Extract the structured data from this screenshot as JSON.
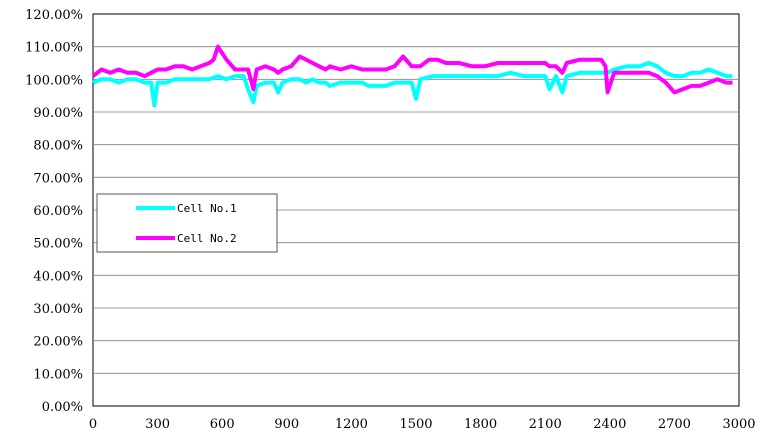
{
  "chart_data": {
    "type": "line",
    "title": "",
    "xlabel": "",
    "ylabel": "",
    "xlim": [
      0,
      3000
    ],
    "ylim": [
      0,
      120
    ],
    "x_ticks": [
      "0",
      "300",
      "600",
      "900",
      "1200",
      "1500",
      "1800",
      "2100",
      "2400",
      "2700",
      "3000"
    ],
    "y_ticks": [
      "0.00%",
      "10.00%",
      "20.00%",
      "30.00%",
      "40.00%",
      "50.00%",
      "60.00%",
      "70.00%",
      "80.00%",
      "90.00%",
      "100.00%",
      "110.00%",
      "120.00%"
    ],
    "grid": "horizontal",
    "legend_position": "middle-left",
    "series": [
      {
        "name": "Cell No.1",
        "color": "#00FFFF",
        "points": [
          [
            0,
            99
          ],
          [
            40,
            100
          ],
          [
            80,
            100
          ],
          [
            120,
            99
          ],
          [
            160,
            100
          ],
          [
            200,
            100
          ],
          [
            240,
            99
          ],
          [
            270,
            99
          ],
          [
            285,
            92
          ],
          [
            300,
            99
          ],
          [
            340,
            99
          ],
          [
            380,
            100
          ],
          [
            420,
            100
          ],
          [
            460,
            100
          ],
          [
            500,
            100
          ],
          [
            540,
            100
          ],
          [
            580,
            101
          ],
          [
            620,
            100
          ],
          [
            660,
            101
          ],
          [
            700,
            101
          ],
          [
            720,
            97
          ],
          [
            745,
            93
          ],
          [
            760,
            98
          ],
          [
            800,
            99
          ],
          [
            840,
            99
          ],
          [
            860,
            96
          ],
          [
            880,
            99
          ],
          [
            920,
            100
          ],
          [
            960,
            100
          ],
          [
            990,
            99
          ],
          [
            1020,
            100
          ],
          [
            1050,
            99
          ],
          [
            1080,
            99
          ],
          [
            1100,
            98
          ],
          [
            1150,
            99
          ],
          [
            1200,
            99
          ],
          [
            1250,
            99
          ],
          [
            1280,
            98
          ],
          [
            1320,
            98
          ],
          [
            1360,
            98
          ],
          [
            1400,
            99
          ],
          [
            1440,
            99
          ],
          [
            1480,
            99
          ],
          [
            1500,
            94
          ],
          [
            1520,
            100
          ],
          [
            1580,
            101
          ],
          [
            1640,
            101
          ],
          [
            1700,
            101
          ],
          [
            1760,
            101
          ],
          [
            1820,
            101
          ],
          [
            1880,
            101
          ],
          [
            1940,
            102
          ],
          [
            2000,
            101
          ],
          [
            2060,
            101
          ],
          [
            2100,
            101
          ],
          [
            2120,
            97
          ],
          [
            2150,
            101
          ],
          [
            2180,
            96
          ],
          [
            2200,
            101
          ],
          [
            2260,
            102
          ],
          [
            2320,
            102
          ],
          [
            2360,
            102
          ],
          [
            2390,
            102
          ],
          [
            2420,
            103
          ],
          [
            2480,
            104
          ],
          [
            2540,
            104
          ],
          [
            2580,
            105
          ],
          [
            2620,
            104
          ],
          [
            2660,
            102
          ],
          [
            2700,
            101
          ],
          [
            2740,
            101
          ],
          [
            2780,
            102
          ],
          [
            2820,
            102
          ],
          [
            2860,
            103
          ],
          [
            2900,
            102
          ],
          [
            2940,
            101
          ],
          [
            2970,
            101
          ]
        ]
      },
      {
        "name": "Cell No.2",
        "color": "#FF00FF",
        "points": [
          [
            0,
            101
          ],
          [
            40,
            103
          ],
          [
            80,
            102
          ],
          [
            120,
            103
          ],
          [
            160,
            102
          ],
          [
            200,
            102
          ],
          [
            240,
            101
          ],
          [
            270,
            102
          ],
          [
            300,
            103
          ],
          [
            340,
            103
          ],
          [
            380,
            104
          ],
          [
            420,
            104
          ],
          [
            460,
            103
          ],
          [
            500,
            104
          ],
          [
            540,
            105
          ],
          [
            560,
            106
          ],
          [
            580,
            110
          ],
          [
            600,
            108
          ],
          [
            620,
            106
          ],
          [
            660,
            103
          ],
          [
            700,
            103
          ],
          [
            720,
            103
          ],
          [
            745,
            97
          ],
          [
            760,
            103
          ],
          [
            800,
            104
          ],
          [
            840,
            103
          ],
          [
            860,
            102
          ],
          [
            880,
            103
          ],
          [
            920,
            104
          ],
          [
            960,
            107
          ],
          [
            990,
            106
          ],
          [
            1020,
            105
          ],
          [
            1050,
            104
          ],
          [
            1080,
            103
          ],
          [
            1100,
            104
          ],
          [
            1150,
            103
          ],
          [
            1200,
            104
          ],
          [
            1250,
            103
          ],
          [
            1280,
            103
          ],
          [
            1320,
            103
          ],
          [
            1360,
            103
          ],
          [
            1400,
            104
          ],
          [
            1440,
            107
          ],
          [
            1480,
            104
          ],
          [
            1500,
            104
          ],
          [
            1520,
            104
          ],
          [
            1560,
            106
          ],
          [
            1600,
            106
          ],
          [
            1640,
            105
          ],
          [
            1700,
            105
          ],
          [
            1760,
            104
          ],
          [
            1820,
            104
          ],
          [
            1880,
            105
          ],
          [
            1940,
            105
          ],
          [
            2000,
            105
          ],
          [
            2060,
            105
          ],
          [
            2100,
            105
          ],
          [
            2120,
            104
          ],
          [
            2150,
            104
          ],
          [
            2180,
            102
          ],
          [
            2200,
            105
          ],
          [
            2260,
            106
          ],
          [
            2320,
            106
          ],
          [
            2360,
            106
          ],
          [
            2380,
            104
          ],
          [
            2390,
            96
          ],
          [
            2420,
            102
          ],
          [
            2480,
            102
          ],
          [
            2540,
            102
          ],
          [
            2580,
            102
          ],
          [
            2620,
            101
          ],
          [
            2660,
            99
          ],
          [
            2700,
            96
          ],
          [
            2740,
            97
          ],
          [
            2780,
            98
          ],
          [
            2820,
            98
          ],
          [
            2860,
            99
          ],
          [
            2900,
            100
          ],
          [
            2940,
            99
          ],
          [
            2970,
            99
          ]
        ]
      }
    ]
  }
}
